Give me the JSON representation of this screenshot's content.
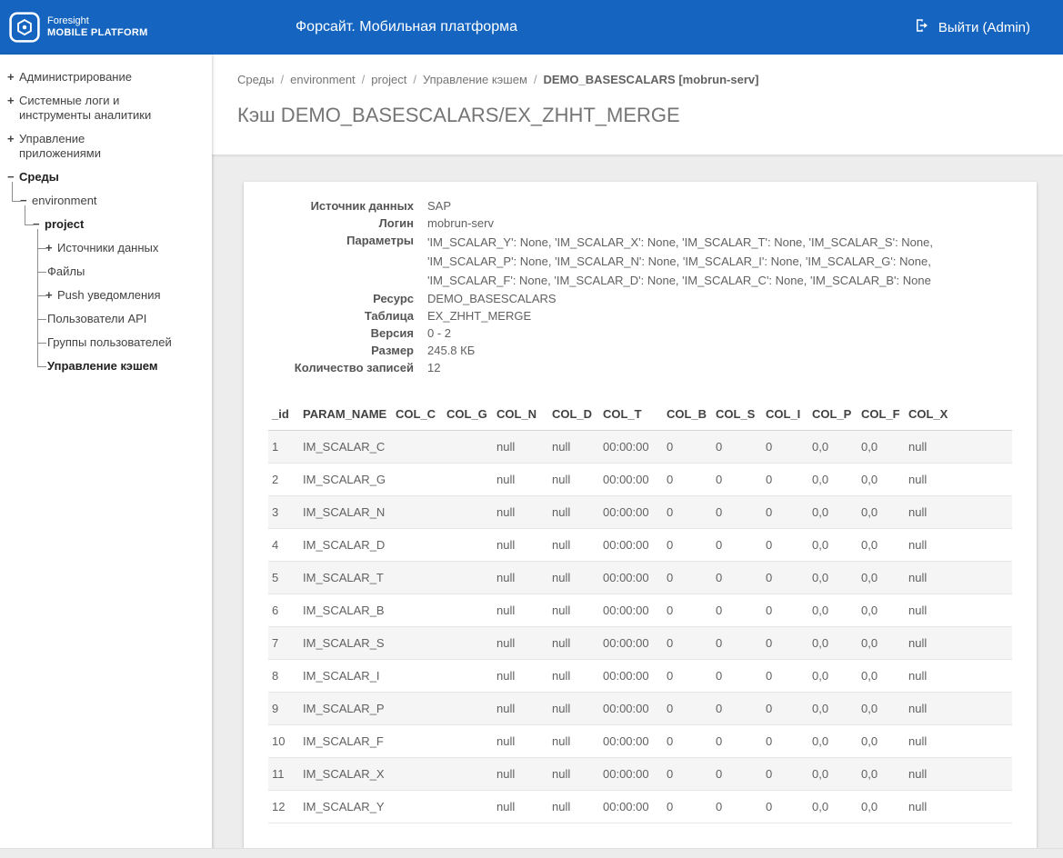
{
  "colors": {
    "header_bg": "#1565c0",
    "header_text": "#ffffff"
  },
  "header": {
    "logo_line1": "Foresight",
    "logo_line2": "MOBILE PLATFORM",
    "title": "Форсайт. Мобильная платформа",
    "logout_label": "Выйти (Admin)"
  },
  "sidebar": {
    "items": [
      {
        "name": "administration",
        "label": "Администрирование",
        "expand": "plus"
      },
      {
        "name": "system-logs",
        "label": "Системные логи и инструменты аналитики",
        "expand": "plus"
      },
      {
        "name": "app-management",
        "label": "Управление приложениями",
        "expand": "plus"
      },
      {
        "name": "environments",
        "label": "Среды",
        "expand": "minus",
        "bold": true,
        "children": [
          {
            "name": "environment",
            "label": "environment",
            "expand": "minus",
            "children": [
              {
                "name": "project",
                "label": "project",
                "expand": "minus",
                "bold": true,
                "children": [
                  {
                    "name": "data-sources",
                    "label": "Источники данных",
                    "expand": "plus"
                  },
                  {
                    "name": "files",
                    "label": "Файлы"
                  },
                  {
                    "name": "push-notifications",
                    "label": "Push уведомления",
                    "expand": "plus"
                  },
                  {
                    "name": "api-users",
                    "label": "Пользователи API"
                  },
                  {
                    "name": "user-groups",
                    "label": "Группы пользователей"
                  },
                  {
                    "name": "cache-management",
                    "label": "Управление кэшем",
                    "bold": true,
                    "selected": true
                  }
                ]
              }
            ]
          }
        ]
      }
    ]
  },
  "breadcrumb": {
    "separator": "/",
    "items": [
      "Среды",
      "environment",
      "project",
      "Управление кэшем"
    ],
    "current": "DEMO_BASESCALARS [mobrun-serv]"
  },
  "page": {
    "title": "Кэш DEMO_BASESCALARS/EX_ZHHT_MERGE"
  },
  "details": {
    "rows": [
      {
        "label": "Источник данных",
        "value": "SAP"
      },
      {
        "label": "Логин",
        "value": "mobrun-serv"
      },
      {
        "label": "Параметры",
        "value": "'IM_SCALAR_Y': None, 'IM_SCALAR_X': None, 'IM_SCALAR_T': None, 'IM_SCALAR_S': None, 'IM_SCALAR_P': None, 'IM_SCALAR_N': None, 'IM_SCALAR_I': None, 'IM_SCALAR_G': None, 'IM_SCALAR_F': None, 'IM_SCALAR_D': None, 'IM_SCALAR_C': None, 'IM_SCALAR_B': None",
        "multiline": true
      },
      {
        "label": "Ресурс",
        "value": "DEMO_BASESCALARS"
      },
      {
        "label": "Таблица",
        "value": "EX_ZHHT_MERGE"
      },
      {
        "label": "Версия",
        "value": "0 - 2"
      },
      {
        "label": "Размер",
        "value": "245.8 КБ"
      },
      {
        "label": "Количество записей",
        "value": "12"
      }
    ]
  },
  "table": {
    "columns": [
      "_id",
      "PARAM_NAME",
      "COL_C",
      "COL_G",
      "COL_N",
      "COL_D",
      "COL_T",
      "COL_B",
      "COL_S",
      "COL_I",
      "COL_P",
      "COL_F",
      "COL_X"
    ],
    "rows": [
      [
        "1",
        "IM_SCALAR_C",
        "",
        "",
        "null",
        "null",
        "00:00:00",
        "0",
        "0",
        "0",
        "0,0",
        "0,0",
        "null"
      ],
      [
        "2",
        "IM_SCALAR_G",
        "",
        "",
        "null",
        "null",
        "00:00:00",
        "0",
        "0",
        "0",
        "0,0",
        "0,0",
        "null"
      ],
      [
        "3",
        "IM_SCALAR_N",
        "",
        "",
        "null",
        "null",
        "00:00:00",
        "0",
        "0",
        "0",
        "0,0",
        "0,0",
        "null"
      ],
      [
        "4",
        "IM_SCALAR_D",
        "",
        "",
        "null",
        "null",
        "00:00:00",
        "0",
        "0",
        "0",
        "0,0",
        "0,0",
        "null"
      ],
      [
        "5",
        "IM_SCALAR_T",
        "",
        "",
        "null",
        "null",
        "00:00:00",
        "0",
        "0",
        "0",
        "0,0",
        "0,0",
        "null"
      ],
      [
        "6",
        "IM_SCALAR_B",
        "",
        "",
        "null",
        "null",
        "00:00:00",
        "0",
        "0",
        "0",
        "0,0",
        "0,0",
        "null"
      ],
      [
        "7",
        "IM_SCALAR_S",
        "",
        "",
        "null",
        "null",
        "00:00:00",
        "0",
        "0",
        "0",
        "0,0",
        "0,0",
        "null"
      ],
      [
        "8",
        "IM_SCALAR_I",
        "",
        "",
        "null",
        "null",
        "00:00:00",
        "0",
        "0",
        "0",
        "0,0",
        "0,0",
        "null"
      ],
      [
        "9",
        "IM_SCALAR_P",
        "",
        "",
        "null",
        "null",
        "00:00:00",
        "0",
        "0",
        "0",
        "0,0",
        "0,0",
        "null"
      ],
      [
        "10",
        "IM_SCALAR_F",
        "",
        "",
        "null",
        "null",
        "00:00:00",
        "0",
        "0",
        "0",
        "0,0",
        "0,0",
        "null"
      ],
      [
        "11",
        "IM_SCALAR_X",
        "",
        "",
        "null",
        "null",
        "00:00:00",
        "0",
        "0",
        "0",
        "0,0",
        "0,0",
        "null"
      ],
      [
        "12",
        "IM_SCALAR_Y",
        "",
        "",
        "null",
        "null",
        "00:00:00",
        "0",
        "0",
        "0",
        "0,0",
        "0,0",
        "null"
      ]
    ]
  }
}
